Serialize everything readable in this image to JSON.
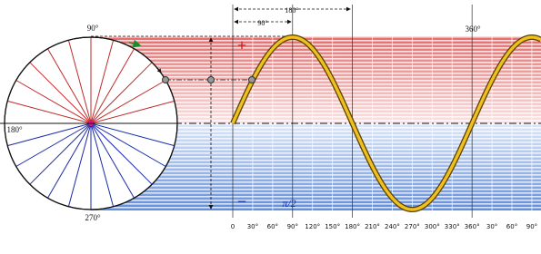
{
  "circle_labels": {
    "top": "90°",
    "left": "180°",
    "bottom": "270°"
  },
  "wave_labels": {
    "full_turn": "360°",
    "half_period": "180°",
    "quarter_period": "90°",
    "positive": "+",
    "negative": "−",
    "phase": "π/2"
  },
  "x_axis": {
    "ticks": [
      "0",
      "30°",
      "60°",
      "90°",
      "120°",
      "150°",
      "180°",
      "210°",
      "240°",
      "270°",
      "300°",
      "330°",
      "360°",
      "30°",
      "60°",
      "90°"
    ]
  }
}
